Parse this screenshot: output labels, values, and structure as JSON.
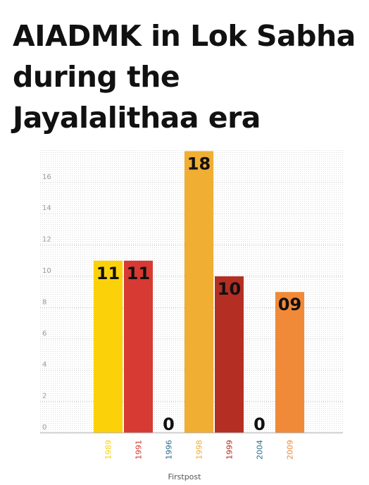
{
  "title": "AIADMK in Lok Sabha during the Jayalalithaa era",
  "source": "Firstpost",
  "chart_data": {
    "type": "bar",
    "title": "AIADMK in Lok Sabha during the Jayalalithaa era",
    "categories": [
      "1989",
      "1991",
      "1996",
      "1998",
      "1999",
      "2004",
      "2009"
    ],
    "values": [
      11,
      11,
      0,
      18,
      10,
      0,
      9
    ],
    "data_labels": [
      "11",
      "11",
      "0",
      "18",
      "10",
      "0",
      "09"
    ],
    "colors": [
      "#fbd20a",
      "#d63a33",
      "#2c6f8e",
      "#f0ae33",
      "#b42e24",
      "#2c6f8e",
      "#f18a38"
    ],
    "yticks": [
      0,
      2,
      4,
      6,
      8,
      10,
      12,
      14,
      16
    ],
    "ylim": [
      0,
      18
    ],
    "xlabel": "",
    "ylabel": "",
    "grid": true,
    "legend": "none"
  }
}
